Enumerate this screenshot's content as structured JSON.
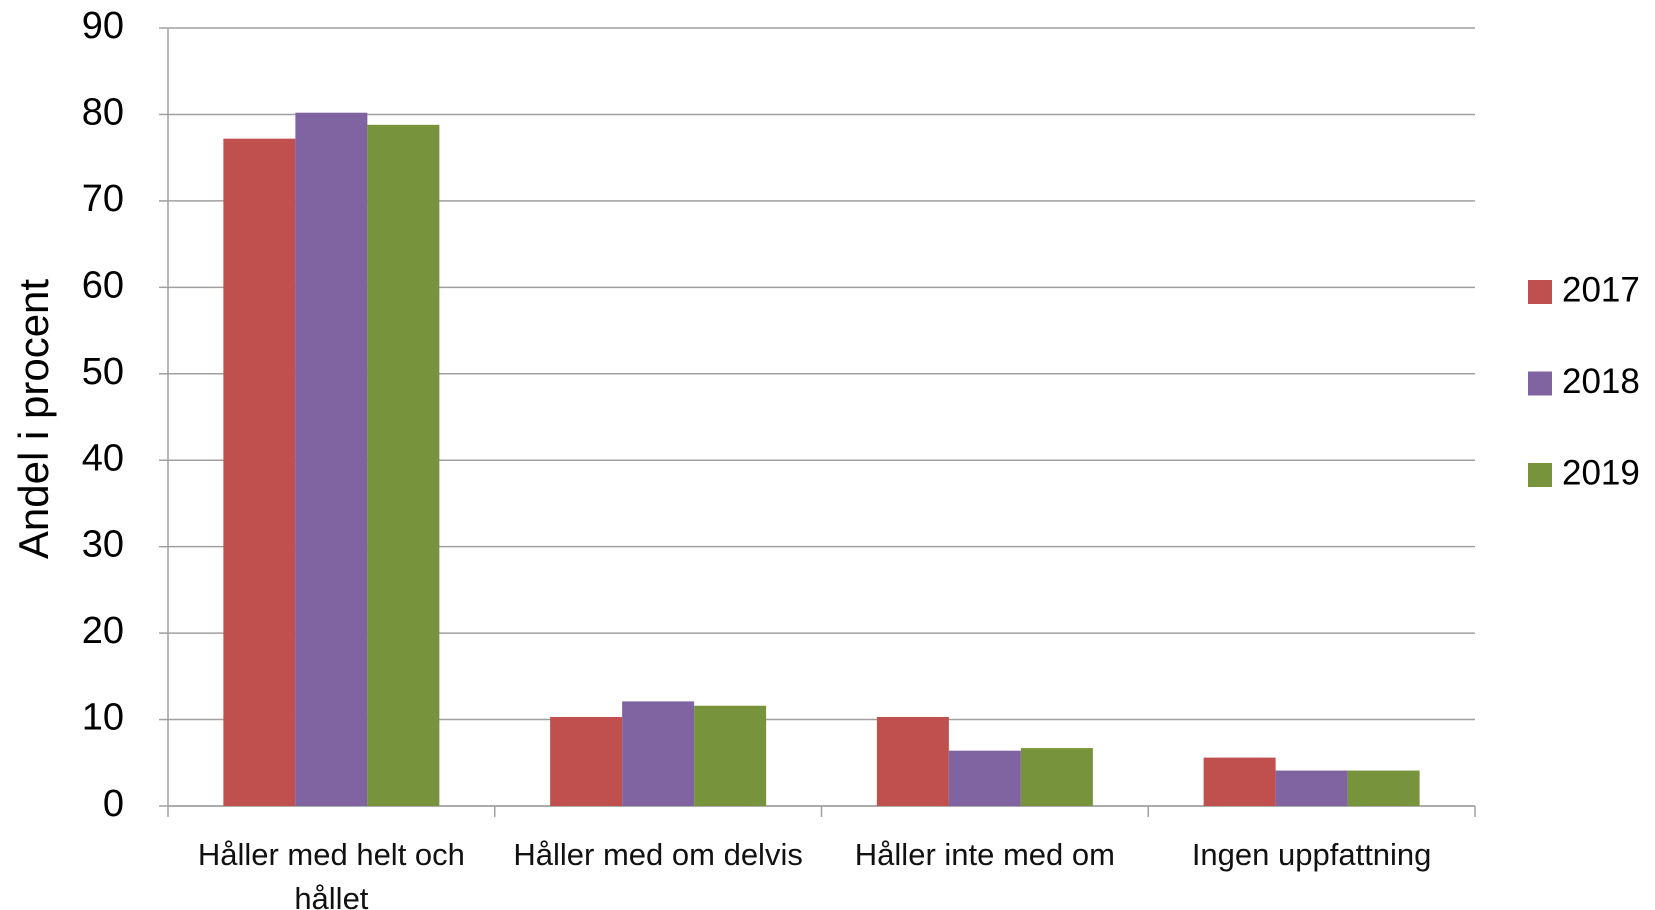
{
  "chart_data": {
    "type": "bar",
    "y_axis_label": "Andel i procent",
    "categories": [
      "Håller med helt och hållet",
      "Håller med om delvis",
      "Håller inte med om",
      "Ingen uppfattning"
    ],
    "series": [
      {
        "name": "2017",
        "color": "#c0504d",
        "values": [
          77.2,
          10.3,
          10.3,
          5.6
        ]
      },
      {
        "name": "2018",
        "color": "#8064a2",
        "values": [
          80.2,
          12.1,
          6.4,
          4.1
        ]
      },
      {
        "name": "2019",
        "color": "#77933c",
        "values": [
          78.8,
          11.6,
          6.7,
          4.1
        ]
      }
    ],
    "ylim": [
      0,
      90
    ],
    "yticks": [
      0,
      10,
      20,
      30,
      40,
      50,
      60,
      70,
      80,
      90
    ],
    "grid": true,
    "legend": "right"
  }
}
